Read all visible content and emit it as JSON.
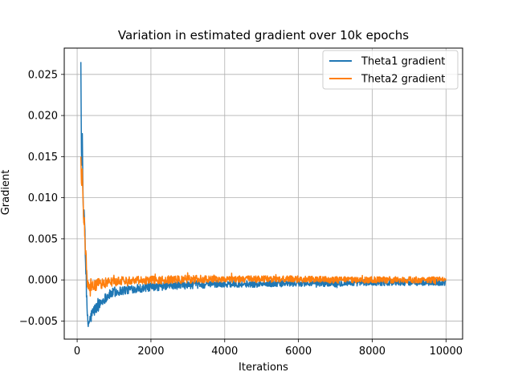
{
  "chart_data": {
    "type": "line",
    "title": "Variation in estimated gradient over 10k epochs",
    "xlabel": "Iterations",
    "ylabel": "Gradient",
    "xlim": [
      -350,
      10450
    ],
    "ylim": [
      -0.0072,
      0.0282
    ],
    "x_ticks": [
      0,
      2000,
      4000,
      6000,
      8000,
      10000
    ],
    "x_tick_labels": [
      "0",
      "2000",
      "4000",
      "6000",
      "8000",
      "10000"
    ],
    "y_ticks": [
      -0.005,
      0.0,
      0.005,
      0.01,
      0.015,
      0.02,
      0.025
    ],
    "y_tick_labels": [
      "−0.005",
      "0.000",
      "0.005",
      "0.010",
      "0.015",
      "0.020",
      "0.025"
    ],
    "grid": true,
    "legend_position": "top-right",
    "series": [
      {
        "name": "Theta1 gradient",
        "color": "#1f77b4",
        "x": [
          100,
          120,
          140,
          160,
          180,
          200,
          220,
          240,
          260,
          280,
          300,
          350,
          400,
          450,
          500,
          600,
          700,
          800,
          1000,
          1200,
          1500,
          2000,
          2500,
          3000,
          4000,
          5000,
          6000,
          7000,
          8000,
          9000,
          10000
        ],
        "y": [
          0.0265,
          0.013,
          0.0178,
          0.0095,
          0.0072,
          0.008,
          0.004,
          0.0005,
          -0.003,
          -0.005,
          -0.0054,
          -0.0048,
          -0.0042,
          -0.0038,
          -0.0035,
          -0.003,
          -0.0025,
          -0.002,
          -0.0015,
          -0.0013,
          -0.0011,
          -0.0009,
          -0.0007,
          -0.0006,
          -0.0005,
          -0.0005,
          -0.0004,
          -0.0004,
          -0.0003,
          -0.0003,
          -0.0003
        ],
        "noise": [
          0,
          0,
          0,
          0,
          0.001,
          0.001,
          0.0012,
          0.0012,
          0.0012,
          0.001,
          0.0008,
          0.0008,
          0.0008,
          0.0008,
          0.0007,
          0.0007,
          0.0006,
          0.0006,
          0.0006,
          0.0006,
          0.0005,
          0.0005,
          0.0005,
          0.0005,
          0.0004,
          0.0004,
          0.0004,
          0.0004,
          0.0004,
          0.0004,
          0.0004
        ]
      },
      {
        "name": "Theta2 gradient",
        "color": "#ff7f0e",
        "x": [
          100,
          120,
          140,
          160,
          180,
          200,
          220,
          240,
          260,
          280,
          300,
          350,
          400,
          450,
          500,
          600,
          700,
          800,
          1000,
          1200,
          1500,
          2000,
          2500,
          3000,
          4000,
          5000,
          6000,
          7000,
          8000,
          9000,
          10000
        ],
        "y": [
          0.015,
          0.011,
          0.0135,
          0.0095,
          0.0072,
          0.0065,
          0.004,
          0.0025,
          0.001,
          -0.0005,
          -0.0009,
          -0.0012,
          -0.001,
          -0.0008,
          -0.0006,
          -0.0005,
          -0.0004,
          -0.0003,
          -0.0002,
          -0.0001,
          0.0,
          0.0,
          0.0,
          0.0001,
          0.0001,
          0.0001,
          0.0001,
          0.0,
          0.0,
          0.0,
          0.0
        ],
        "noise": [
          0,
          0,
          0,
          0,
          0.001,
          0.001,
          0.001,
          0.001,
          0.001,
          0.0008,
          0.0008,
          0.0008,
          0.0008,
          0.0007,
          0.0007,
          0.0007,
          0.0006,
          0.0006,
          0.0006,
          0.0005,
          0.0005,
          0.0005,
          0.0005,
          0.0005,
          0.0004,
          0.0004,
          0.0004,
          0.0004,
          0.0004,
          0.0004,
          0.0004
        ]
      }
    ]
  }
}
